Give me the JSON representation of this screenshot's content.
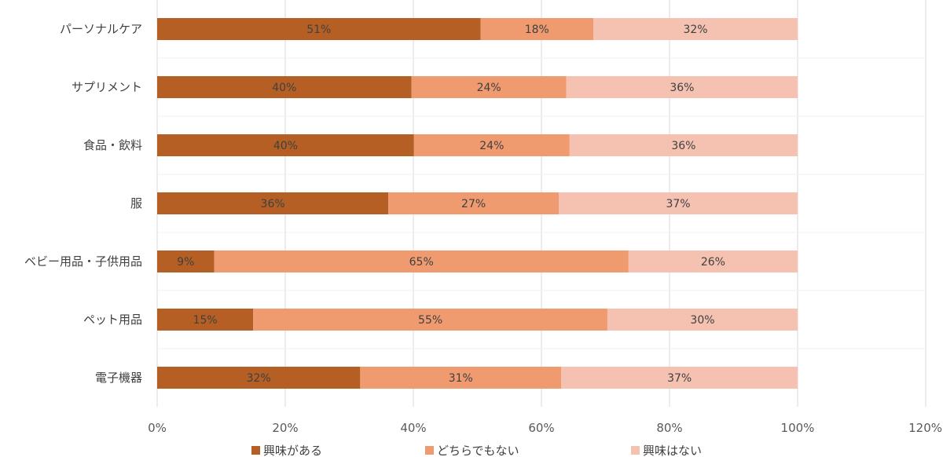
{
  "chart_data": {
    "type": "bar",
    "orientation": "horizontal",
    "stacked": true,
    "title": "",
    "xlabel": "",
    "ylabel": "",
    "xlim": [
      0,
      120
    ],
    "xticks": [
      0,
      20,
      40,
      60,
      80,
      100,
      120
    ],
    "xtick_labels": [
      "0%",
      "20%",
      "40%",
      "60%",
      "80%",
      "100%",
      "120%"
    ],
    "grid": true,
    "legend_position": "bottom",
    "categories": [
      "パーソナルケア",
      "サプリメント",
      "食品・飲料",
      "服",
      "ベビー用品・子供用品",
      "ペット用品",
      "電子機器"
    ],
    "series": [
      {
        "name": "興味がある",
        "color": "#B55F24",
        "values": [
          50.5,
          39.7,
          40.1,
          36.1,
          8.9,
          15.0,
          31.7
        ],
        "labels": [
          "51%",
          "40%",
          "40%",
          "36%",
          "9%",
          "15%",
          "32%"
        ]
      },
      {
        "name": "どちらでもない",
        "color": "#F09A70",
        "values": [
          17.6,
          24.2,
          24.3,
          26.6,
          64.7,
          55.3,
          31.4
        ],
        "labels": [
          "18%",
          "24%",
          "24%",
          "27%",
          "65%",
          "55%",
          "31%"
        ]
      },
      {
        "name": "興味はない",
        "color": "#F5C2B2",
        "values": [
          31.9,
          36.1,
          35.6,
          37.3,
          26.4,
          29.7,
          36.9
        ],
        "labels": [
          "32%",
          "36%",
          "36%",
          "37%",
          "26%",
          "30%",
          "37%"
        ]
      }
    ]
  }
}
